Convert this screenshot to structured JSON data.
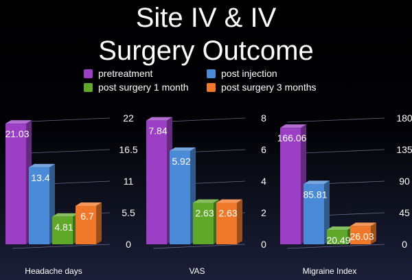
{
  "title": {
    "line1": "Site IV & IV",
    "line2": "Surgery Outcome"
  },
  "colors": {
    "pretreatment": "#9b3fc4",
    "post_injection": "#4a8ad6",
    "post_surgery_1_month": "#5fa82a",
    "post_surgery_3_months": "#f0782a"
  },
  "legend": [
    {
      "label": "pretreatment",
      "color": "#9b3fc4"
    },
    {
      "label": "post injection",
      "color": "#4a8ad6"
    },
    {
      "label": "post surgery 1 month",
      "color": "#5fa82a"
    },
    {
      "label": "post surgery 3 months",
      "color": "#f0782a"
    }
  ],
  "chart_data": [
    {
      "type": "bar",
      "title": "",
      "xlabel": "Headache days",
      "ylabel": "",
      "ylim": [
        0,
        22
      ],
      "yticks": [
        "0",
        "5.5",
        "11",
        "16.5",
        "22"
      ],
      "categories": [
        "Headache days"
      ],
      "series": [
        {
          "name": "pretreatment",
          "values": [
            21.03
          ],
          "label": "21.03"
        },
        {
          "name": "post injection",
          "values": [
            13.4
          ],
          "label": "13.4"
        },
        {
          "name": "post surgery 1 month",
          "values": [
            4.81
          ],
          "label": "4.81"
        },
        {
          "name": "post surgery 3 months",
          "values": [
            6.7
          ],
          "label": "6.7"
        }
      ]
    },
    {
      "type": "bar",
      "title": "",
      "xlabel": "VAS",
      "ylabel": "",
      "ylim": [
        0,
        8
      ],
      "yticks": [
        "0",
        "2",
        "4",
        "6",
        "8"
      ],
      "categories": [
        "VAS"
      ],
      "series": [
        {
          "name": "pretreatment",
          "values": [
            7.84
          ],
          "label": "7.84"
        },
        {
          "name": "post injection",
          "values": [
            5.92
          ],
          "label": "5.92"
        },
        {
          "name": "post surgery 1 month",
          "values": [
            2.63
          ],
          "label": "2.63"
        },
        {
          "name": "post surgery 3 months",
          "values": [
            2.63
          ],
          "label": "2.63"
        }
      ]
    },
    {
      "type": "bar",
      "title": "",
      "xlabel": "Migraine Index",
      "ylabel": "",
      "ylim": [
        0,
        180
      ],
      "yticks": [
        "0",
        "45",
        "90",
        "135",
        "180"
      ],
      "categories": [
        "Migraine Index"
      ],
      "series": [
        {
          "name": "pretreatment",
          "values": [
            166.06
          ],
          "label": "166.06"
        },
        {
          "name": "post injection",
          "values": [
            85.81
          ],
          "label": "85.81"
        },
        {
          "name": "post surgery 1 month",
          "values": [
            20.49
          ],
          "label": "20.49"
        },
        {
          "name": "post surgery 3 months",
          "values": [
            26.03
          ],
          "label": "26.03"
        }
      ]
    }
  ]
}
